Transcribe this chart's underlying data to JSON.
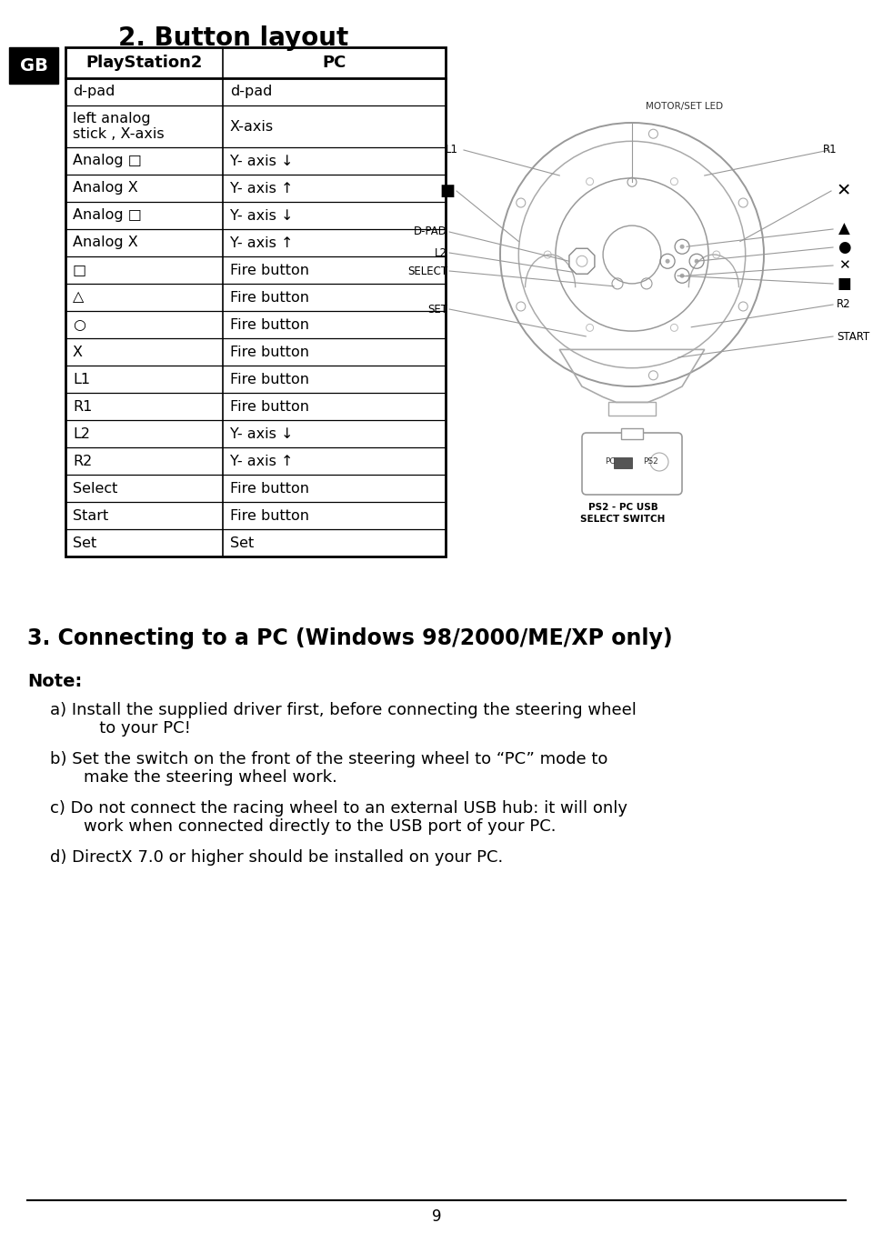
{
  "title": "2. Button layout",
  "section3_title": "3. Connecting to a PC (Windows 98/2000/ME/XP only)",
  "note_label": "Note:",
  "notes": [
    [
      "a) Install the supplied driver first, before connecting the steering wheel",
      "       to your PC!"
    ],
    [
      "b) Set the switch on the front of the steering wheel to “PC” mode to",
      "    make the steering wheel work."
    ],
    [
      "c) Do not connect the racing wheel to an external USB hub: it will only",
      "    work when connected directly to the USB port of your PC."
    ],
    [
      "d) DirectX 7.0 or higher should be installed on your PC.",
      ""
    ]
  ],
  "table_headers": [
    "PlayStation2",
    "PC"
  ],
  "table_rows": [
    [
      "d-pad",
      "d-pad"
    ],
    [
      "left analog\nstick , X-axis",
      "X-axis"
    ],
    [
      "Analog □",
      "Y- axis ↓"
    ],
    [
      "Analog X",
      "Y- axis ↑"
    ],
    [
      "Analog □",
      "Y- axis ↓"
    ],
    [
      "Analog X",
      "Y- axis ↑"
    ],
    [
      "□",
      "Fire button"
    ],
    [
      "△",
      "Fire button"
    ],
    [
      "○",
      "Fire button"
    ],
    [
      "X",
      "Fire button"
    ],
    [
      "L1",
      "Fire button"
    ],
    [
      "R1",
      "Fire button"
    ],
    [
      "L2",
      "Y- axis ↓"
    ],
    [
      "R2",
      "Y- axis ↑"
    ],
    [
      "Select",
      "Fire button"
    ],
    [
      "Start",
      "Fire button"
    ],
    [
      "Set",
      "Set"
    ]
  ],
  "page_number": "9",
  "gb_label": "GB",
  "bg_color": "#ffffff",
  "text_color": "#000000"
}
